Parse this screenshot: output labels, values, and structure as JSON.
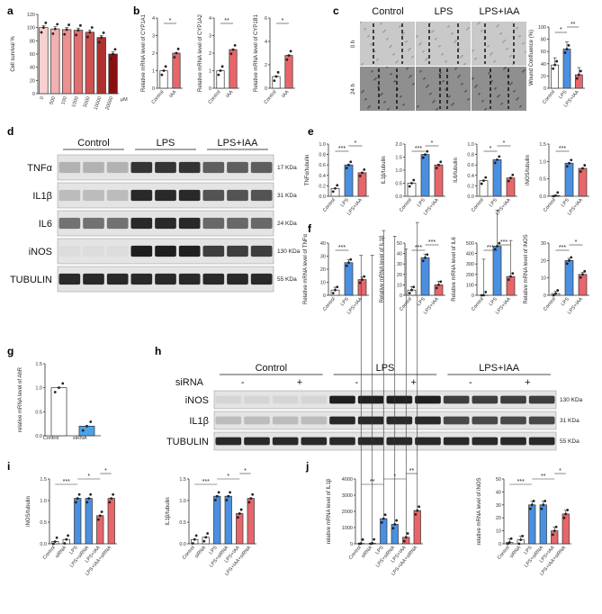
{
  "panel_labels": [
    "a",
    "b",
    "c",
    "d",
    "e",
    "f",
    "g",
    "h",
    "i",
    "j"
  ],
  "colors": {
    "control": "#ffffff",
    "lps": "#4a90e2",
    "lps_iaa": "#e8666a",
    "siRNA": "#4aa3e8",
    "blot_dark": "#1a1a1a"
  },
  "chart_data": [
    {
      "id": "a",
      "type": "bar",
      "categories": [
        "0",
        "500",
        "100",
        "1000",
        "5000",
        "10000",
        "20000"
      ],
      "values": [
        100,
        98,
        97,
        96,
        93,
        85,
        60
      ],
      "colors": [
        "#f7d0d0",
        "#f2b0b0",
        "#ec9090",
        "#e07070",
        "#d05050",
        "#b03030",
        "#8a1010"
      ],
      "ylabel": "Cell survival %",
      "xunit": "μM",
      "ylim": [
        0,
        120
      ],
      "yticks": [
        "0",
        "20",
        "40",
        "60",
        "80",
        "100",
        "120"
      ]
    },
    {
      "id": "b1",
      "type": "bar",
      "categories": [
        "Control",
        "IAA"
      ],
      "values": [
        1,
        2
      ],
      "ylabel": "Relative mRNA level of CYP1A1",
      "ylim": [
        0,
        4
      ],
      "yticks": [
        "0",
        "1",
        "2",
        "3",
        "4"
      ],
      "sig": "*"
    },
    {
      "id": "b2",
      "type": "bar",
      "categories": [
        "Control",
        "IAA"
      ],
      "values": [
        1,
        2.2
      ],
      "ylabel": "Relative mRNA level of CYP1A2",
      "ylim": [
        0,
        4
      ],
      "yticks": [
        "0",
        "1",
        "2",
        "3",
        "4"
      ],
      "sig": "**"
    },
    {
      "id": "b3",
      "type": "bar",
      "categories": [
        "Control",
        "IAA"
      ],
      "values": [
        1,
        2.8
      ],
      "ylabel": "Relative mRNA level of CYP1B1",
      "ylim": [
        0,
        6
      ],
      "yticks": [
        "0",
        "2",
        "4",
        "6"
      ],
      "sig": "*"
    },
    {
      "id": "c",
      "type": "bar",
      "categories": [
        "Control",
        "LPS",
        "LPS+IAA"
      ],
      "values": [
        38,
        64,
        22
      ],
      "ylabel": "Wound Confluence (%)",
      "ylim": [
        0,
        100
      ],
      "yticks": [
        "0",
        "20",
        "40",
        "60",
        "80",
        "100"
      ],
      "sig": [
        "*",
        "**"
      ]
    },
    {
      "id": "e1",
      "type": "bar",
      "categories": [
        "Control",
        "LPS",
        "LPS+IAA"
      ],
      "values": [
        0.15,
        0.6,
        0.45
      ],
      "ylabel": "TNFα/tubulin",
      "ylim": [
        0,
        1
      ],
      "yticks": [
        "0.0",
        "0.2",
        "0.4",
        "0.6",
        "0.8",
        "1.0"
      ],
      "sig": [
        "***",
        "*"
      ]
    },
    {
      "id": "e2",
      "type": "bar",
      "categories": [
        "Control",
        "LPS",
        "LPS+IAA"
      ],
      "values": [
        0.5,
        1.6,
        1.2
      ],
      "ylabel": "IL1β/tubulin",
      "ylim": [
        0,
        2
      ],
      "yticks": [
        "0.0",
        "0.5",
        "1.0",
        "1.5",
        "2.0"
      ],
      "sig": [
        "***",
        "*"
      ]
    },
    {
      "id": "e3",
      "type": "bar",
      "categories": [
        "Control",
        "LPS",
        "LPS+IAA"
      ],
      "values": [
        0.3,
        0.7,
        0.35
      ],
      "ylabel": "IL6/tubulin",
      "ylim": [
        0,
        1
      ],
      "yticks": [
        "0.0",
        "0.2",
        "0.4",
        "0.6",
        "0.8",
        "1.0"
      ],
      "sig": [
        "*",
        "*"
      ]
    },
    {
      "id": "e4",
      "type": "bar",
      "categories": [
        "Control",
        "LPS",
        "LPS+IAA"
      ],
      "values": [
        0.02,
        0.95,
        0.8
      ],
      "ylabel": "iNOS/tubulin",
      "ylim": [
        0,
        1.5
      ],
      "yticks": [
        "0.0",
        "0.5",
        "1.0",
        "1.5"
      ],
      "sig": [
        "***"
      ]
    },
    {
      "id": "f1",
      "type": "bar",
      "categories": [
        "Control",
        "LPS",
        "LPS+IAA"
      ],
      "values": [
        4,
        25,
        12
      ],
      "ylabel": "Relative mRNA level of TNFα",
      "ylim": [
        0,
        40
      ],
      "yticks": [
        "0",
        "10",
        "20",
        "30",
        "40"
      ],
      "sig": [
        "***"
      ]
    },
    {
      "id": "f2",
      "type": "bar",
      "categories": [
        "Control",
        "LPS",
        "LPS+IAA"
      ],
      "values": [
        5,
        36,
        10
      ],
      "ylabel": "Relative mRNA level of IL1β",
      "ylim": [
        0,
        50
      ],
      "yticks": [
        "0",
        "10",
        "20",
        "30",
        "40",
        "50"
      ],
      "sig": [
        "***",
        "***"
      ]
    },
    {
      "id": "f3",
      "type": "bar",
      "categories": [
        "Control",
        "LPS",
        "LPS+IAA"
      ],
      "values": [
        1,
        470,
        180
      ],
      "ylabel": "Relative mRNA level of IL6",
      "ylim": [
        0,
        500
      ],
      "yticks": [
        "0",
        "100",
        "200",
        "300",
        "400",
        "500"
      ],
      "sig": [
        "***",
        "***"
      ]
    },
    {
      "id": "f4",
      "type": "bar",
      "categories": [
        "Control",
        "LPS",
        "LPS+IAA"
      ],
      "values": [
        1,
        20,
        12
      ],
      "ylabel": "Relative mRNA level of iNOS",
      "ylim": [
        0,
        30
      ],
      "yticks": [
        "0",
        "10",
        "20",
        "30"
      ],
      "sig": [
        "***",
        "*"
      ]
    },
    {
      "id": "g",
      "type": "bar",
      "categories": [
        "Control",
        "siRNA"
      ],
      "values": [
        1.0,
        0.2
      ],
      "ylabel": "relative mRNA level of AhR",
      "ylim": [
        0,
        1.5
      ],
      "yticks": [
        "0.0",
        "0.5",
        "1.0",
        "1.5"
      ]
    },
    {
      "id": "i1",
      "type": "bar",
      "categories": [
        "Control",
        "siRNA",
        "LPS",
        "LPS+siRNA",
        "LPS+IAA",
        "LPS+IAA+siRNA"
      ],
      "values": [
        0.05,
        0.1,
        1.05,
        1.05,
        0.65,
        1.05
      ],
      "ylabel": "iNOS/tubulin",
      "ylim": [
        0,
        1.5
      ],
      "yticks": [
        "0.0",
        "0.5",
        "1.0",
        "1.5"
      ],
      "sig": [
        "***",
        "*",
        "*"
      ]
    },
    {
      "id": "i2",
      "type": "bar",
      "categories": [
        "Control",
        "siRNA",
        "LPS",
        "LPS+siRNA",
        "LPS+IAA",
        "LPS+IAA+siRNA"
      ],
      "values": [
        0.1,
        0.15,
        1.1,
        1.1,
        0.7,
        1.05
      ],
      "ylabel": "IL1β/tubulin",
      "ylim": [
        0,
        1.5
      ],
      "yticks": [
        "0.0",
        "0.5",
        "1.0",
        "1.5"
      ],
      "sig": [
        "***",
        "*",
        "*"
      ]
    },
    {
      "id": "j1",
      "type": "bar",
      "categories": [
        "Control",
        "siRNA",
        "LPS",
        "LPS+siRNA",
        "LPS+IAA",
        "LPS+IAA+siRNA"
      ],
      "values": [
        20,
        30,
        1550,
        1200,
        400,
        2050
      ],
      "ylabel": "relative mRNA level of IL1β",
      "ylim": [
        0,
        4000
      ],
      "yticks": [
        "0",
        "1000",
        "2000",
        "3000",
        "4000"
      ],
      "sig": [
        "**",
        "*",
        "**"
      ]
    },
    {
      "id": "j2",
      "type": "bar",
      "categories": [
        "Control",
        "siRNA",
        "LPS",
        "LPS+siRNA",
        "LPS+IAA",
        "LPS+IAA+siRNA"
      ],
      "values": [
        1,
        3,
        30,
        30,
        10,
        23
      ],
      "ylabel": "relative mRNA level of iNOS",
      "ylim": [
        0,
        50
      ],
      "yticks": [
        "0",
        "10",
        "20",
        "30",
        "40",
        "50"
      ],
      "sig": [
        "***",
        "**",
        "*"
      ]
    }
  ],
  "wound": {
    "cols": [
      "Control",
      "LPS",
      "LPS+IAA"
    ],
    "rows": [
      "0 h",
      "24 h"
    ]
  },
  "blot_d": {
    "groups": [
      "Control",
      "LPS",
      "LPS+IAA"
    ],
    "rows": [
      {
        "name": "TNFα",
        "kda": "17 KDa"
      },
      {
        "name": "IL1β",
        "kda": "31 KDa"
      },
      {
        "name": "IL6",
        "kda": "24 KDa"
      },
      {
        "name": "iNOS",
        "kda": "130 KDa"
      },
      {
        "name": "TUBULIN",
        "kda": "55 KDa"
      }
    ]
  },
  "blot_h": {
    "groups": [
      "Control",
      "LPS",
      "LPS+IAA"
    ],
    "sirna_label": "siRNA",
    "signs": [
      "-",
      "+",
      "-",
      "+",
      "-",
      "+"
    ],
    "rows": [
      {
        "name": "iNOS",
        "kda": "130 KDa"
      },
      {
        "name": "IL1β",
        "kda": "31 KDa"
      },
      {
        "name": "TUBULIN",
        "kda": "55 KDa"
      }
    ]
  }
}
